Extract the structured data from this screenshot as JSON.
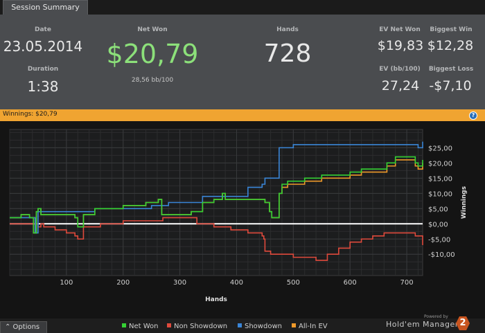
{
  "tab": {
    "label": "Session Summary"
  },
  "summary": {
    "date_label": "Date",
    "date_value": "23.05.2014",
    "duration_label": "Duration",
    "duration_value": "1:38",
    "net_won_label": "Net Won",
    "net_won_value": "$20,79",
    "net_won_sub": "28,56 bb/100",
    "hands_label": "Hands",
    "hands_value": "728",
    "ev_net_won_label": "EV Net Won",
    "ev_net_won_value": "$19,83",
    "biggest_win_label": "Biggest Win",
    "biggest_win_value": "$12,28",
    "ev_bb_label": "EV (bb/100)",
    "ev_bb_value": "27,24",
    "biggest_loss_label": "Biggest Loss",
    "biggest_loss_value": "-$7,10"
  },
  "winnings_bar": {
    "text": "Winnings: $20,79",
    "help_icon": "?"
  },
  "colors": {
    "net_won": "#35d134",
    "non_showdown": "#e04a3c",
    "showdown": "#3a86d8",
    "all_in_ev": "#f09a2a",
    "accent": "#f0a431"
  },
  "footer": {
    "options_label": "⌃  Options",
    "powered_by": "Powered by",
    "brand": "Hold'em Manager",
    "brand_logo": "2"
  },
  "chart_data": {
    "type": "line",
    "xlabel": "Hands",
    "ylabel": "Winnings",
    "xlim": [
      0,
      728
    ],
    "ylim": [
      -17,
      31
    ],
    "x_ticks": [
      100,
      200,
      300,
      400,
      500,
      600,
      700
    ],
    "y_ticks": [
      25,
      20,
      15,
      10,
      5,
      0,
      -5,
      -10
    ],
    "y_tick_labels": [
      "$25,00",
      "$20,00",
      "$15,00",
      "$10,00",
      "$5,00",
      "$0,00",
      "-$5,00",
      "-$10,00"
    ],
    "grid": true,
    "legend": "bottom",
    "series": [
      {
        "name": "Net Won",
        "color": "#35d134",
        "x": [
          0,
          20,
          35,
          42,
          47,
          50,
          55,
          60,
          100,
          115,
          120,
          130,
          150,
          200,
          240,
          262,
          268,
          300,
          320,
          340,
          360,
          375,
          380,
          400,
          420,
          450,
          458,
          462,
          470,
          475,
          480,
          490,
          500,
          520,
          550,
          600,
          620,
          650,
          665,
          680,
          700,
          715,
          720,
          728
        ],
        "y": [
          2,
          3,
          2,
          -3,
          4,
          5,
          3,
          3,
          3,
          2,
          -1,
          3,
          5,
          6,
          7,
          8,
          3,
          3,
          4,
          7,
          8,
          10,
          8,
          8,
          8,
          7,
          4,
          2,
          2,
          10,
          13,
          14,
          14,
          15,
          16,
          17,
          18,
          18,
          20,
          22,
          22,
          20,
          19,
          21
        ]
      },
      {
        "name": "Non Showdown",
        "color": "#e04a3c",
        "x": [
          0,
          20,
          40,
          50,
          55,
          60,
          80,
          100,
          115,
          120,
          130,
          160,
          200,
          240,
          270,
          300,
          330,
          360,
          390,
          420,
          445,
          448,
          450,
          460,
          500,
          540,
          560,
          580,
          600,
          620,
          640,
          660,
          680,
          700,
          715,
          728
        ],
        "y": [
          0,
          0,
          0,
          -1,
          0,
          -1,
          -2,
          -3,
          -4,
          -5,
          -1,
          0,
          1,
          1,
          2,
          2,
          0,
          -1,
          -2,
          -3,
          -4,
          -5,
          -9,
          -10,
          -11,
          -12,
          -10,
          -8,
          -6,
          -5,
          -4,
          -3,
          -3,
          -3,
          -4,
          -7
        ]
      },
      {
        "name": "Showdown",
        "color": "#3a86d8",
        "x": [
          0,
          40,
          45,
          50,
          100,
          120,
          150,
          200,
          250,
          280,
          300,
          340,
          380,
          420,
          445,
          450,
          470,
          475,
          500,
          520,
          600,
          650,
          700,
          720,
          728
        ],
        "y": [
          2,
          2,
          -3,
          4,
          4,
          4,
          5,
          5,
          6,
          7,
          7,
          9,
          9,
          12,
          13,
          15,
          15,
          25,
          26,
          26,
          26,
          26,
          26,
          25,
          27
        ]
      },
      {
        "name": "All-In EV",
        "color": "#f09a2a",
        "x": [
          0,
          20,
          35,
          42,
          47,
          50,
          55,
          60,
          100,
          115,
          120,
          130,
          150,
          200,
          240,
          262,
          268,
          300,
          320,
          340,
          360,
          375,
          380,
          400,
          420,
          450,
          458,
          462,
          470,
          475,
          480,
          490,
          500,
          520,
          550,
          600,
          620,
          650,
          665,
          680,
          700,
          715,
          720,
          728
        ],
        "y": [
          2,
          3,
          2,
          -3,
          4,
          5,
          3,
          3,
          3,
          2,
          -1,
          3,
          5,
          6,
          7,
          8,
          3,
          3,
          4,
          7,
          8,
          10,
          8,
          8,
          8,
          7,
          4,
          2,
          2,
          10,
          12,
          13,
          13,
          14,
          15,
          16,
          17,
          17,
          19,
          21,
          21,
          19,
          18,
          20
        ]
      }
    ]
  }
}
